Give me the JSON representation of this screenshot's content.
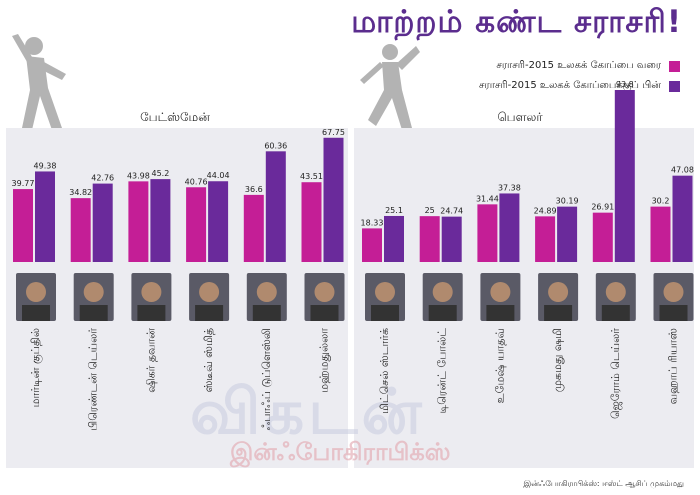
{
  "title": "மாற்றம் கண்ட சராசரி!",
  "credit": "இன்ஃபோகிராபிக்ஸ்: ஈஸ்ட் ஆசிப் முகம்மது",
  "watermark": "விகடன்",
  "watermark_sub": "இன்ஃபோகிராபிக்ஸ்",
  "colors": {
    "before": "#c41e96",
    "after": "#6a2a9b",
    "panel": "#ececf1",
    "title": "#5b2d8e"
  },
  "chart_data": {
    "type": "bar",
    "legend_position": "top-right",
    "series": [
      {
        "name": "சராசரி-2015 உலகக் கோப்பை வரை"
      },
      {
        "name": "சராசரி-2015 உலகக் கோப்பைக்குப் பின்"
      }
    ],
    "groups": [
      {
        "label": "பேட்ஸ்மேன்",
        "players": [
          {
            "name": "மார்டின் குப்தில்",
            "before": 39.77,
            "after": 49.38,
            "before_label": "39.77",
            "after_label": "49.38"
          },
          {
            "name": "பிரெண்டன் டெய்லர்",
            "before": 34.82,
            "after": 42.76,
            "before_label": "34.82",
            "after_label": "42.76"
          },
          {
            "name": "ஷிகர் தவான்",
            "before": 43.98,
            "after": 45.2,
            "before_label": "43.98",
            "after_label": "45.2"
          },
          {
            "name": "ஸ்டீவ் ஸ்மித்",
            "before": 40.76,
            "after": 44.04,
            "before_label": "40.76",
            "after_label": "44.04"
          },
          {
            "name": "ஃபாஃப் டுப்ளெஸ்லி",
            "before": 36.6,
            "after": 60.36,
            "before_label": "36.6",
            "after_label": "60.36"
          },
          {
            "name": "மஹ்மதுல்லா",
            "before": 43.51,
            "after": 67.75,
            "before_label": "43.51",
            "after_label": "67.75"
          }
        ]
      },
      {
        "label": "பௌலர்",
        "players": [
          {
            "name": "மிட்செல் ஸ்டார்க்",
            "before": 18.33,
            "after": 25.1,
            "before_label": "18.33",
            "after_label": "25.1"
          },
          {
            "name": "டிரென்ட் போல்ட்",
            "before": 25,
            "after": 24.74,
            "before_label": "25",
            "after_label": "24.74"
          },
          {
            "name": "உமேஷ் யாதவ்",
            "before": 31.44,
            "after": 37.38,
            "before_label": "31.44",
            "after_label": "37.38"
          },
          {
            "name": "முகமது ஷமி",
            "before": 24.89,
            "after": 30.19,
            "before_label": "24.89",
            "after_label": "30.19"
          },
          {
            "name": "ஜெரோம் டெய்லர்",
            "before": 26.91,
            "after": 93.8,
            "before_label": "26.91",
            "after_label": "93.8"
          },
          {
            "name": "வஹாப் ரியாஸ்",
            "before": 30.2,
            "after": 47.08,
            "before_label": "30.2",
            "after_label": "47.08"
          }
        ]
      }
    ]
  }
}
